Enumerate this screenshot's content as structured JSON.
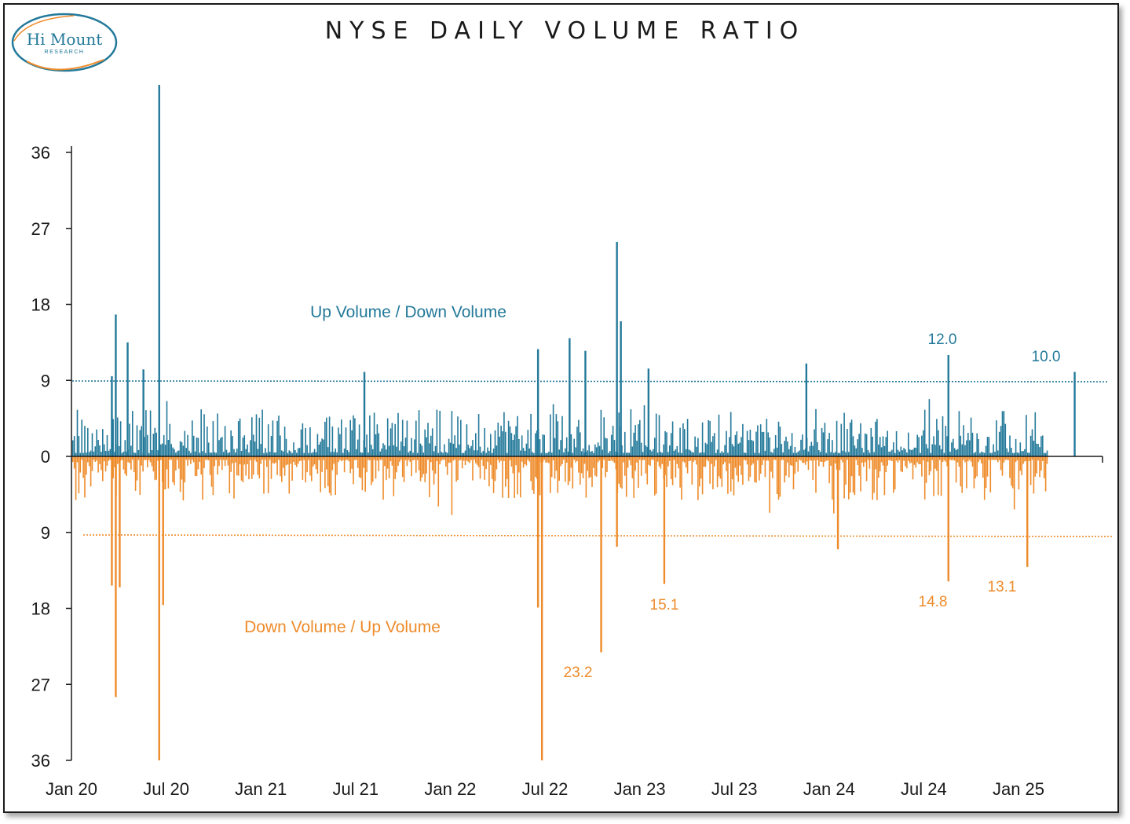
{
  "title": "NYSE DAILY VOLUME RATIO",
  "logo": {
    "line1": "Hi Mount",
    "line2": "RESEARCH"
  },
  "colors": {
    "up": "#23799a",
    "down": "#ee8b2a",
    "axis": "#1a1a1a"
  },
  "chart_data": {
    "type": "bar",
    "title": "NYSE DAILY VOLUME RATIO",
    "y_ticks_up": [
      "36",
      "27",
      "18",
      "9",
      "0"
    ],
    "y_ticks_down": [
      "9",
      "18",
      "27",
      "36"
    ],
    "ylim": [
      -36,
      36
    ],
    "x_ticks": [
      "Jan 20",
      "Jul 20",
      "Jan 21",
      "Jul 21",
      "Jan 22",
      "Jul 22",
      "Jan 23",
      "Jul 23",
      "Jan 24",
      "Jul 24",
      "Jan 25"
    ],
    "grid": false,
    "series": [
      {
        "name": "Up Volume / Down Volume",
        "color": "#23799a",
        "threshold": 9,
        "spikes": [
          {
            "date": "Mar 20",
            "value": 9.5
          },
          {
            "date": "Mar 20",
            "value": 16.8
          },
          {
            "date": "Apr 20",
            "value": 13.5
          },
          {
            "date": "May 20",
            "value": 10.3
          },
          {
            "date": "Jun 20",
            "value": 44.0
          },
          {
            "date": "Jul 21",
            "value": 10.0
          },
          {
            "date": "Jun 22",
            "value": 12.7
          },
          {
            "date": "Aug 22",
            "value": 14.0
          },
          {
            "date": "Sep 22",
            "value": 12.5
          },
          {
            "date": "Nov 22",
            "value": 25.4
          },
          {
            "date": "Nov 22",
            "value": 16.0
          },
          {
            "date": "Jan 23",
            "value": 10.4
          },
          {
            "date": "Nov 23",
            "value": 11.0
          },
          {
            "date": "Aug 24",
            "value": 12.0
          },
          {
            "date": "Apr 25",
            "value": 10.0
          }
        ]
      },
      {
        "name": "Down Volume / Up Volume",
        "color": "#ee8b2a",
        "threshold": 9,
        "spikes": [
          {
            "date": "Mar 20",
            "value": 15.3
          },
          {
            "date": "Mar 20",
            "value": 28.5
          },
          {
            "date": "Mar 20",
            "value": 15.5
          },
          {
            "date": "Jun 20",
            "value": 36.0
          },
          {
            "date": "Jun 20",
            "value": 17.6
          },
          {
            "date": "Jun 22",
            "value": 17.9
          },
          {
            "date": "Jun 22",
            "value": 36.0
          },
          {
            "date": "Oct 22",
            "value": 23.2
          },
          {
            "date": "Nov 22",
            "value": 10.7
          },
          {
            "date": "Feb 23",
            "value": 15.1
          },
          {
            "date": "Jan 24",
            "value": 11.0
          },
          {
            "date": "Aug 24",
            "value": 14.8
          },
          {
            "date": "Jan 25",
            "value": 13.1
          }
        ]
      }
    ],
    "annotations_up": [
      "12.0",
      "10.0"
    ],
    "annotations_down": [
      "23.2",
      "15.1",
      "14.8",
      "13.1"
    ]
  }
}
